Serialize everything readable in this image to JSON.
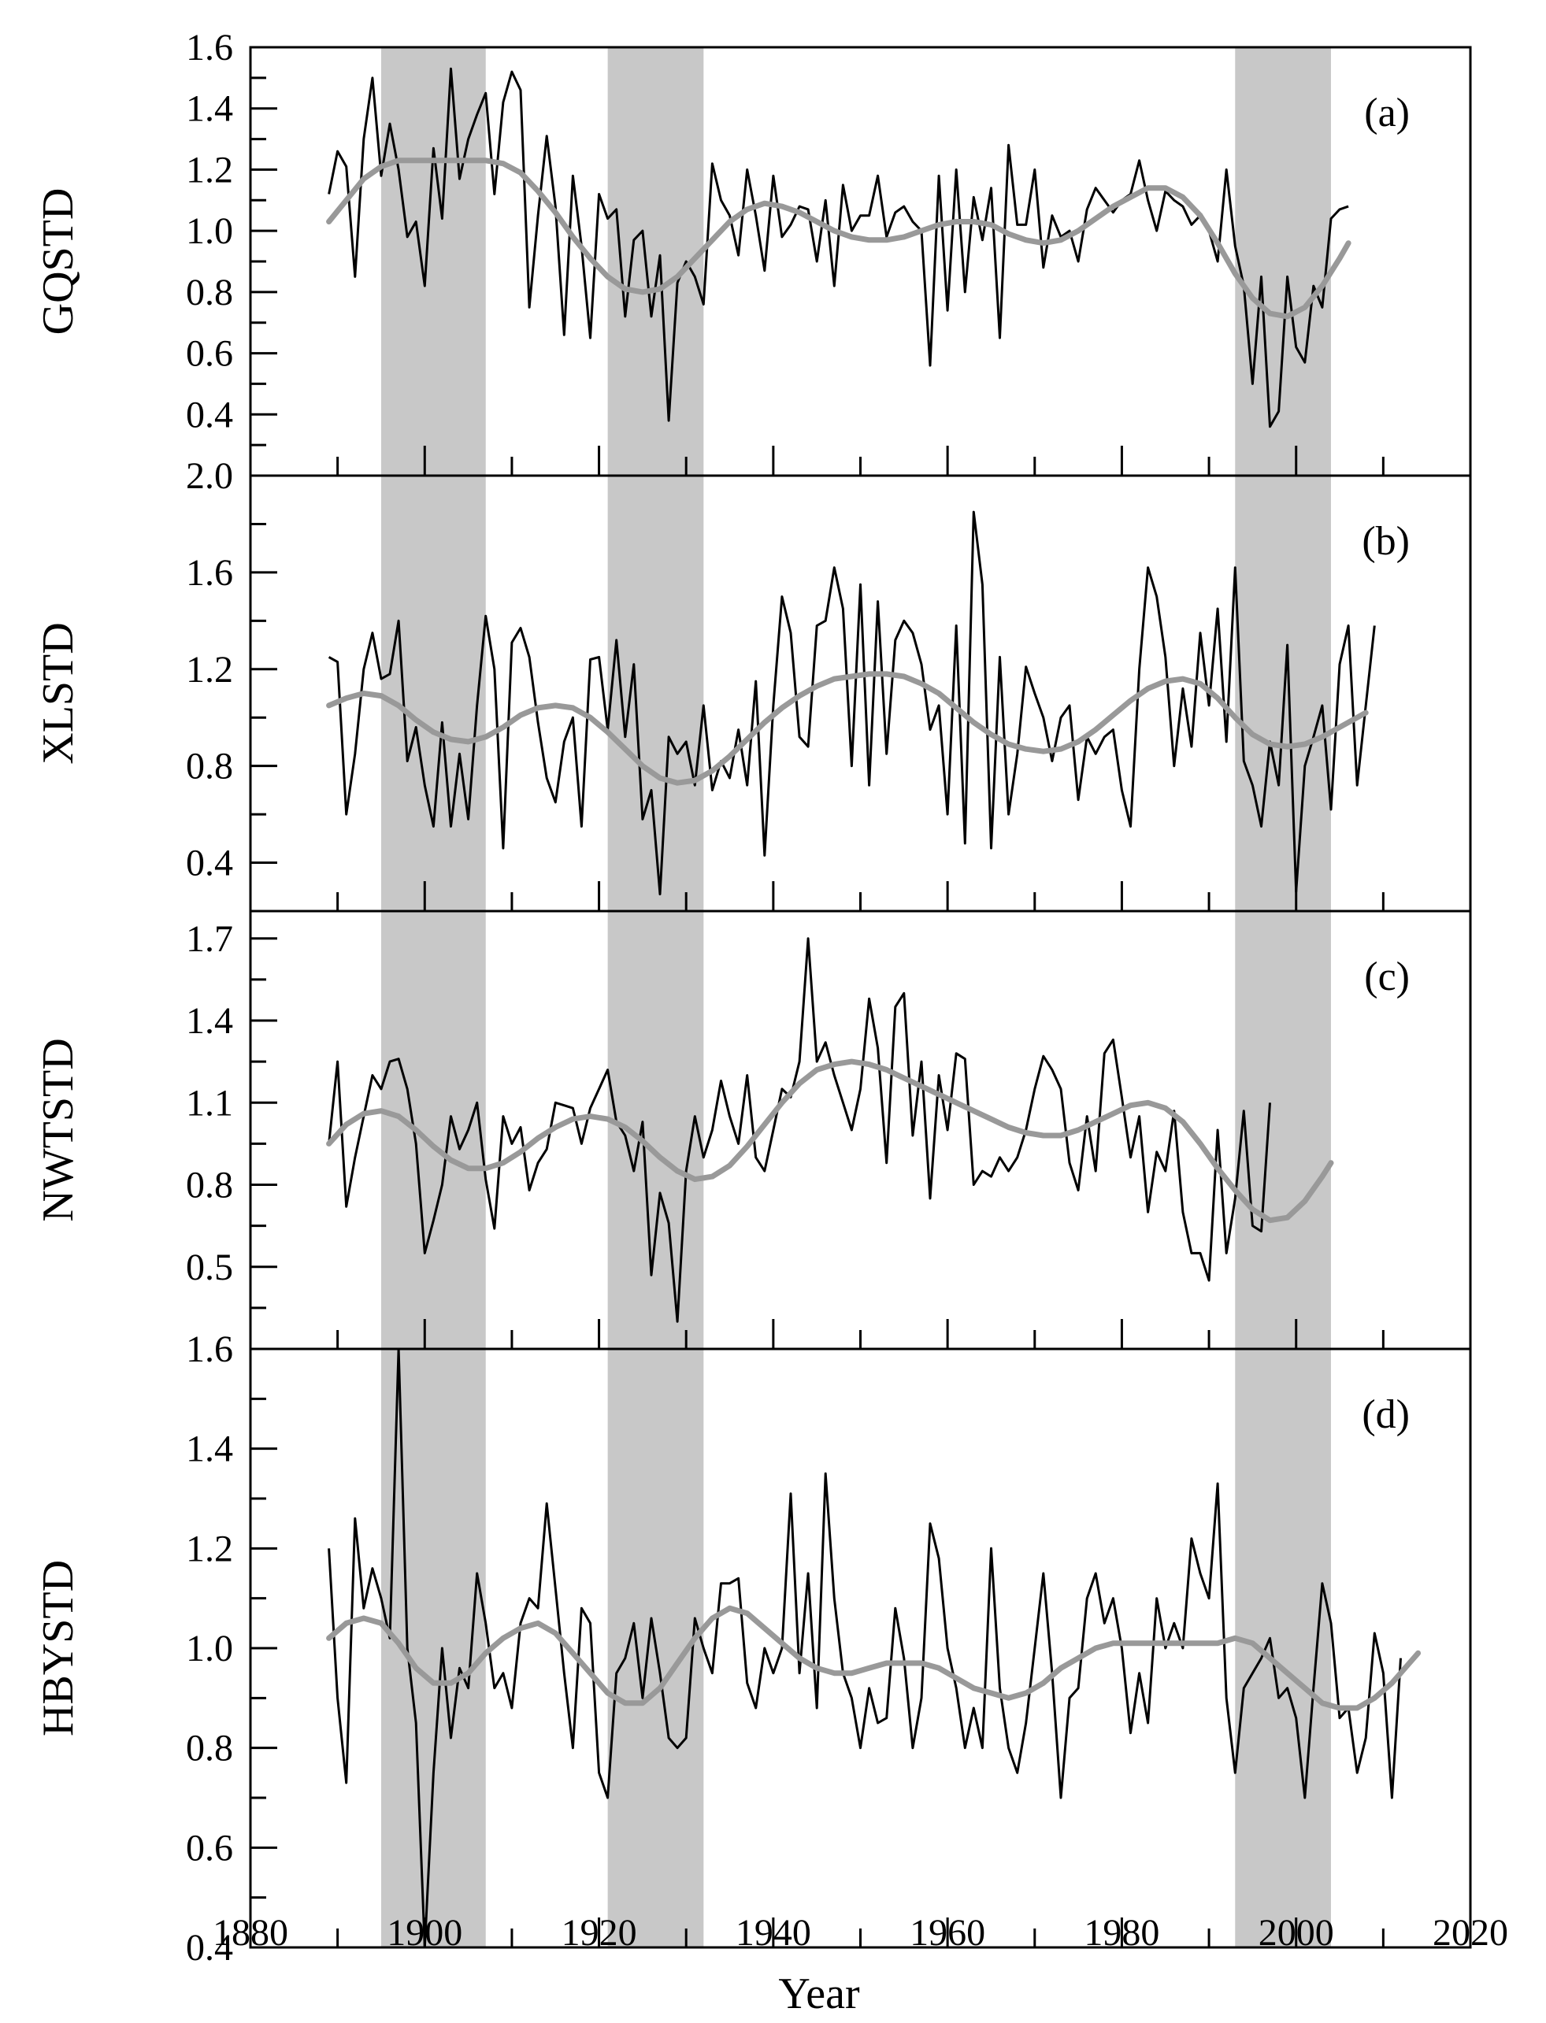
{
  "chart_data": [
    {
      "type": "line",
      "panel_label": "(a)",
      "ylabel": "GQSTD",
      "xlim": [
        1880,
        2020
      ],
      "ylim": [
        0.2,
        1.6
      ],
      "yticks_labeled": [
        "1.6",
        "1.4",
        "1.2",
        "1.0",
        "0.8",
        "0.6",
        "0.4"
      ],
      "yticks_values": [
        1.6,
        1.4,
        1.2,
        1.0,
        0.8,
        0.6,
        0.4
      ],
      "raw_color": "#000000",
      "smooth_color": "#999999",
      "x_start": 1889,
      "raw_values": [
        1.12,
        1.26,
        1.21,
        0.85,
        1.3,
        1.5,
        1.18,
        1.35,
        1.2,
        0.98,
        1.03,
        0.82,
        1.27,
        1.04,
        1.53,
        1.17,
        1.3,
        1.38,
        1.45,
        1.12,
        1.42,
        1.52,
        1.46,
        0.75,
        1.05,
        1.31,
        1.08,
        0.66,
        1.18,
        0.95,
        0.65,
        1.12,
        1.04,
        1.07,
        0.72,
        0.97,
        1.0,
        0.72,
        0.92,
        0.38,
        0.83,
        0.9,
        0.85,
        0.76,
        1.22,
        1.1,
        1.05,
        0.92,
        1.2,
        1.05,
        0.87,
        1.18,
        0.98,
        1.02,
        1.08,
        1.07,
        0.9,
        1.1,
        0.82,
        1.15,
        1.0,
        1.05,
        1.05,
        1.18,
        0.98,
        1.06,
        1.08,
        1.03,
        1.0,
        0.56,
        1.18,
        0.74,
        1.2,
        0.8,
        1.11,
        0.97,
        1.14,
        0.65,
        1.28,
        1.02,
        1.02,
        1.2,
        0.88,
        1.05,
        0.98,
        1.0,
        0.9,
        1.07,
        1.14,
        1.1,
        1.06,
        1.1,
        1.12,
        1.23,
        1.1,
        1.0,
        1.13,
        1.1,
        1.08,
        1.02,
        1.05,
        1.0,
        0.9,
        1.2,
        0.95,
        0.82,
        0.5,
        0.85,
        0.36,
        0.41,
        0.85,
        0.62,
        0.57,
        0.82,
        0.75,
        1.04,
        1.07,
        1.08
      ],
      "smooth_x": [
        1889,
        1891,
        1893,
        1895,
        1897,
        1899,
        1901,
        1903,
        1905,
        1907,
        1909,
        1911,
        1913,
        1915,
        1917,
        1919,
        1921,
        1923,
        1925,
        1927,
        1929,
        1931,
        1933,
        1935,
        1937,
        1939,
        1941,
        1943,
        1945,
        1947,
        1949,
        1951,
        1953,
        1955,
        1957,
        1959,
        1961,
        1963,
        1965,
        1967,
        1969,
        1971,
        1973,
        1975,
        1977,
        1979,
        1981,
        1983,
        1985,
        1987,
        1989,
        1991,
        1993,
        1995,
        1997,
        1999,
        2001,
        2003,
        2005,
        2006
      ],
      "smooth_values": [
        1.03,
        1.1,
        1.17,
        1.21,
        1.23,
        1.23,
        1.23,
        1.23,
        1.23,
        1.23,
        1.22,
        1.19,
        1.13,
        1.06,
        0.98,
        0.91,
        0.85,
        0.81,
        0.8,
        0.81,
        0.85,
        0.91,
        0.97,
        1.03,
        1.07,
        1.09,
        1.08,
        1.06,
        1.03,
        1.0,
        0.98,
        0.97,
        0.97,
        0.98,
        1.0,
        1.02,
        1.03,
        1.03,
        1.02,
        0.99,
        0.97,
        0.96,
        0.97,
        1.0,
        1.04,
        1.08,
        1.11,
        1.14,
        1.14,
        1.11,
        1.05,
        0.96,
        0.86,
        0.78,
        0.73,
        0.72,
        0.75,
        0.82,
        0.91,
        0.96
      ],
      "band_ylim_top": 1.6,
      "band_ylim_bottom": 0.2
    },
    {
      "type": "line",
      "panel_label": "(b)",
      "ylabel": "XLSTD",
      "xlim": [
        1880,
        2020
      ],
      "ylim": [
        0.2,
        2.0
      ],
      "yticks_labeled": [
        "2.0",
        "1.6",
        "1.2",
        "0.8",
        "0.4"
      ],
      "yticks_values": [
        2.0,
        1.6,
        1.2,
        0.8,
        0.4
      ],
      "raw_color": "#000000",
      "smooth_color": "#999999",
      "x_start": 1889,
      "raw_values": [
        1.25,
        1.23,
        0.6,
        0.85,
        1.2,
        1.35,
        1.16,
        1.18,
        1.4,
        0.82,
        0.96,
        0.72,
        0.55,
        0.98,
        0.55,
        0.85,
        0.58,
        1.05,
        1.42,
        1.2,
        0.46,
        1.31,
        1.37,
        1.25,
        0.98,
        0.75,
        0.65,
        0.9,
        1.0,
        0.55,
        1.24,
        1.25,
        0.95,
        1.32,
        0.92,
        1.22,
        0.58,
        0.7,
        0.27,
        0.92,
        0.85,
        0.9,
        0.72,
        1.05,
        0.7,
        0.82,
        0.75,
        0.95,
        0.72,
        1.15,
        0.43,
        1.05,
        1.5,
        1.35,
        0.92,
        0.88,
        1.38,
        1.4,
        1.62,
        1.45,
        0.8,
        1.55,
        0.72,
        1.48,
        0.85,
        1.32,
        1.4,
        1.35,
        1.22,
        0.95,
        1.05,
        0.6,
        1.38,
        0.48,
        1.85,
        1.55,
        0.46,
        1.25,
        0.6,
        0.85,
        1.21,
        1.1,
        1.0,
        0.82,
        1.0,
        1.05,
        0.66,
        0.92,
        0.85,
        0.92,
        0.95,
        0.7,
        0.55,
        1.2,
        1.62,
        1.5,
        1.25,
        0.8,
        1.12,
        0.88,
        1.35,
        1.05,
        1.45,
        0.9,
        1.62,
        0.82,
        0.72,
        0.55,
        0.9,
        0.72,
        1.3,
        0.28,
        0.8,
        0.92,
        1.05,
        0.62,
        1.22,
        1.38,
        0.72,
        1.05,
        1.38
      ],
      "smooth_x": [
        1889,
        1891,
        1893,
        1895,
        1897,
        1899,
        1901,
        1903,
        1905,
        1907,
        1909,
        1911,
        1913,
        1915,
        1917,
        1919,
        1921,
        1923,
        1925,
        1927,
        1929,
        1931,
        1933,
        1935,
        1937,
        1939,
        1941,
        1943,
        1945,
        1947,
        1949,
        1951,
        1953,
        1955,
        1957,
        1959,
        1961,
        1963,
        1965,
        1967,
        1969,
        1971,
        1973,
        1975,
        1977,
        1979,
        1981,
        1983,
        1985,
        1987,
        1989,
        1991,
        1993,
        1995,
        1997,
        1999,
        2001,
        2003,
        2005,
        2007,
        2008
      ],
      "smooth_values": [
        1.05,
        1.08,
        1.1,
        1.09,
        1.05,
        0.99,
        0.94,
        0.91,
        0.9,
        0.92,
        0.96,
        1.01,
        1.04,
        1.05,
        1.04,
        1.0,
        0.94,
        0.87,
        0.8,
        0.75,
        0.73,
        0.74,
        0.78,
        0.84,
        0.91,
        0.98,
        1.04,
        1.09,
        1.13,
        1.16,
        1.17,
        1.18,
        1.18,
        1.17,
        1.14,
        1.1,
        1.04,
        0.98,
        0.93,
        0.89,
        0.87,
        0.86,
        0.87,
        0.9,
        0.95,
        1.01,
        1.07,
        1.12,
        1.15,
        1.16,
        1.14,
        1.08,
        1.0,
        0.93,
        0.89,
        0.88,
        0.89,
        0.92,
        0.96,
        1.0,
        1.02
      ],
      "band_ylim_top": 2.0,
      "band_ylim_bottom": 0.2
    },
    {
      "type": "line",
      "panel_label": "(c)",
      "ylabel": "NWTSTD",
      "xlim": [
        1880,
        2020
      ],
      "ylim": [
        0.2,
        1.8
      ],
      "yticks_labeled": [
        "1.7",
        "1.4",
        "1.1",
        "0.8",
        "0.5"
      ],
      "yticks_values": [
        1.7,
        1.4,
        1.1,
        0.8,
        0.5
      ],
      "raw_color": "#000000",
      "smooth_color": "#999999",
      "x_start": 1889,
      "raw_values": [
        0.95,
        1.25,
        0.72,
        0.9,
        1.05,
        1.2,
        1.15,
        1.25,
        1.26,
        1.15,
        0.95,
        0.55,
        0.67,
        0.8,
        1.05,
        0.93,
        1.0,
        1.1,
        0.82,
        0.64,
        1.05,
        0.95,
        1.01,
        0.78,
        0.88,
        0.93,
        1.1,
        1.09,
        1.08,
        0.95,
        1.08,
        1.15,
        1.22,
        1.03,
        0.98,
        0.85,
        1.03,
        0.47,
        0.77,
        0.66,
        0.3,
        0.85,
        1.05,
        0.9,
        1.0,
        1.18,
        1.05,
        0.95,
        1.2,
        0.9,
        0.85,
        1.0,
        1.15,
        1.12,
        1.25,
        1.7,
        1.25,
        1.32,
        1.2,
        1.1,
        1.0,
        1.15,
        1.48,
        1.3,
        0.88,
        1.45,
        1.5,
        0.98,
        1.25,
        0.75,
        1.2,
        1.0,
        1.28,
        1.26,
        0.8,
        0.85,
        0.83,
        0.9,
        0.85,
        0.9,
        1.0,
        1.15,
        1.27,
        1.22,
        1.15,
        0.88,
        0.78,
        1.05,
        0.85,
        1.28,
        1.33,
        1.12,
        0.9,
        1.05,
        0.7,
        0.92,
        0.85,
        1.07,
        0.7,
        0.55,
        0.55,
        0.45,
        1.0,
        0.55,
        0.75,
        1.07,
        0.65,
        0.63,
        1.1
      ],
      "smooth_x": [
        1889,
        1891,
        1893,
        1895,
        1897,
        1899,
        1901,
        1903,
        1905,
        1907,
        1909,
        1911,
        1913,
        1915,
        1917,
        1919,
        1921,
        1923,
        1925,
        1927,
        1929,
        1931,
        1933,
        1935,
        1937,
        1939,
        1941,
        1943,
        1945,
        1947,
        1949,
        1951,
        1953,
        1955,
        1957,
        1959,
        1961,
        1963,
        1965,
        1967,
        1969,
        1971,
        1973,
        1975,
        1977,
        1979,
        1981,
        1983,
        1985,
        1987,
        1989,
        1991,
        1993,
        1995,
        1997,
        1999,
        2001,
        2003,
        2004
      ],
      "smooth_values": [
        0.95,
        1.02,
        1.06,
        1.07,
        1.05,
        1.0,
        0.94,
        0.89,
        0.86,
        0.86,
        0.88,
        0.92,
        0.97,
        1.01,
        1.04,
        1.05,
        1.04,
        1.01,
        0.96,
        0.9,
        0.85,
        0.82,
        0.83,
        0.87,
        0.94,
        1.02,
        1.1,
        1.17,
        1.22,
        1.24,
        1.25,
        1.24,
        1.22,
        1.19,
        1.16,
        1.13,
        1.1,
        1.07,
        1.04,
        1.01,
        0.99,
        0.98,
        0.98,
        1.0,
        1.03,
        1.06,
        1.09,
        1.1,
        1.08,
        1.03,
        0.95,
        0.86,
        0.78,
        0.71,
        0.67,
        0.68,
        0.74,
        0.83,
        0.88
      ],
      "band_ylim_top": 1.8,
      "band_ylim_bottom": 0.2
    },
    {
      "type": "line",
      "panel_label": "(d)",
      "ylabel": "HBYSTD",
      "xlim": [
        1880,
        2020
      ],
      "ylim": [
        0.4,
        1.6
      ],
      "yticks_labeled": [
        "1.6",
        "1.4",
        "1.2",
        "1.0",
        "0.8",
        "0.6",
        "0.4"
      ],
      "yticks_values": [
        1.6,
        1.4,
        1.2,
        1.0,
        0.8,
        0.6,
        0.4
      ],
      "raw_color": "#000000",
      "smooth_color": "#999999",
      "x_start": 1889,
      "raw_values": [
        1.2,
        0.9,
        0.73,
        1.26,
        1.08,
        1.16,
        1.1,
        1.02,
        1.6,
        1.0,
        0.85,
        0.4,
        0.75,
        1.0,
        0.82,
        0.96,
        0.92,
        1.15,
        1.05,
        0.92,
        0.95,
        0.88,
        1.05,
        1.1,
        1.08,
        1.29,
        1.12,
        0.95,
        0.8,
        1.08,
        1.05,
        0.75,
        0.7,
        0.95,
        0.98,
        1.05,
        0.9,
        1.06,
        0.95,
        0.82,
        0.8,
        0.82,
        1.06,
        1.0,
        0.95,
        1.13,
        1.13,
        1.14,
        0.93,
        0.88,
        1.0,
        0.95,
        1.0,
        1.31,
        0.95,
        1.15,
        0.88,
        1.35,
        1.1,
        0.95,
        0.9,
        0.8,
        0.92,
        0.85,
        0.86,
        1.08,
        0.98,
        0.8,
        0.9,
        1.25,
        1.18,
        1.0,
        0.92,
        0.8,
        0.88,
        0.8,
        1.2,
        0.92,
        0.8,
        0.75,
        0.85,
        1.0,
        1.15,
        0.95,
        0.7,
        0.9,
        0.92,
        1.1,
        1.15,
        1.05,
        1.1,
        1.0,
        0.83,
        0.95,
        0.85,
        1.1,
        1.0,
        1.05,
        1.0,
        1.22,
        1.15,
        1.1,
        1.33,
        0.9,
        0.75,
        0.92,
        0.95,
        0.98,
        1.02,
        0.9,
        0.92,
        0.86,
        0.7,
        0.92,
        1.13,
        1.05,
        0.86,
        0.88,
        0.75,
        0.82,
        1.03,
        0.95,
        0.7,
        0.98
      ],
      "smooth_x": [
        1889,
        1891,
        1893,
        1895,
        1897,
        1899,
        1901,
        1903,
        1905,
        1907,
        1909,
        1911,
        1913,
        1915,
        1917,
        1919,
        1921,
        1923,
        1925,
        1927,
        1929,
        1931,
        1933,
        1935,
        1937,
        1939,
        1941,
        1943,
        1945,
        1947,
        1949,
        1951,
        1953,
        1955,
        1957,
        1959,
        1961,
        1963,
        1965,
        1967,
        1969,
        1971,
        1973,
        1975,
        1977,
        1979,
        1981,
        1983,
        1985,
        1987,
        1989,
        1991,
        1993,
        1995,
        1997,
        1999,
        2001,
        2003,
        2005,
        2007,
        2009,
        2011,
        2013,
        2014
      ],
      "smooth_values": [
        1.02,
        1.05,
        1.06,
        1.05,
        1.01,
        0.96,
        0.93,
        0.93,
        0.95,
        0.99,
        1.02,
        1.04,
        1.05,
        1.03,
        0.99,
        0.95,
        0.91,
        0.89,
        0.89,
        0.92,
        0.97,
        1.02,
        1.06,
        1.08,
        1.07,
        1.04,
        1.01,
        0.98,
        0.96,
        0.95,
        0.95,
        0.96,
        0.97,
        0.97,
        0.97,
        0.96,
        0.94,
        0.92,
        0.91,
        0.9,
        0.91,
        0.93,
        0.96,
        0.98,
        1.0,
        1.01,
        1.01,
        1.01,
        1.01,
        1.01,
        1.01,
        1.01,
        1.02,
        1.01,
        0.98,
        0.95,
        0.92,
        0.89,
        0.88,
        0.88,
        0.9,
        0.93,
        0.97,
        0.99
      ],
      "band_ylim_top": 1.6,
      "band_ylim_bottom": 0.4
    }
  ],
  "shaded_periods": [
    [
      1895,
      1907
    ],
    [
      1921,
      1932
    ],
    [
      1993,
      2004
    ]
  ],
  "shade_color": "#c8c8c8",
  "x_axis": {
    "label": "Year",
    "ticks": [
      "1880",
      "1900",
      "1920",
      "1940",
      "1960",
      "1980",
      "2000",
      "2020"
    ],
    "tick_values": [
      1880,
      1900,
      1920,
      1940,
      1960,
      1980,
      2000,
      2020
    ]
  }
}
